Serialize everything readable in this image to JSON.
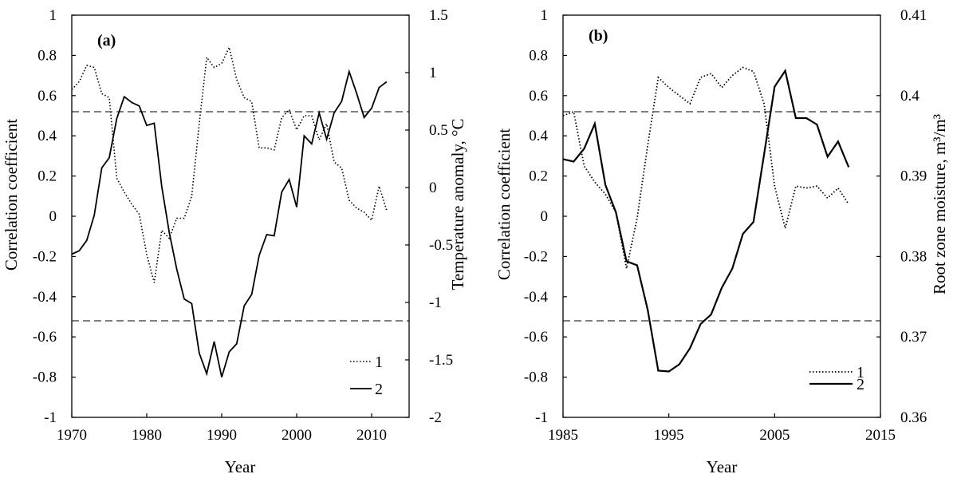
{
  "chart_data": [
    {
      "type": "line",
      "panel_label": "(a)",
      "xlabel": "Year",
      "ylabel_left": "Correlation coefficient",
      "ylabel_right": "Temperature anomaly, °C",
      "xlim": [
        1970,
        2015
      ],
      "ylim_left": [
        -1,
        1
      ],
      "ylim_right": [
        -2,
        1.5
      ],
      "x_ticks": [
        1970,
        1980,
        1990,
        2000,
        2010
      ],
      "y_ticks_left": [
        "1",
        "0.8",
        "0.6",
        "0.4",
        "0.2",
        "0",
        "-0.2",
        "-0.4",
        "-0.6",
        "-0.8",
        "-1"
      ],
      "y_ticks_right": [
        "1.5",
        "1",
        "0.5",
        "0",
        "-0.5",
        "-1",
        "-1.5",
        "-2"
      ],
      "thresholds": [
        0.52,
        -0.52
      ],
      "grid": false,
      "legend_position": "bottom-right",
      "series": [
        {
          "name": "1",
          "axis": "left",
          "style": "dotted",
          "x": [
            1970,
            1971,
            1972,
            1973,
            1974,
            1975,
            1976,
            1977,
            1978,
            1979,
            1980,
            1981,
            1982,
            1983,
            1984,
            1985,
            1986,
            1987,
            1988,
            1989,
            1990,
            1991,
            1992,
            1993,
            1994,
            1995,
            1996,
            1997,
            1998,
            1999,
            2000,
            2001,
            2002,
            2003,
            2004,
            2005,
            2006,
            2007,
            2008,
            2009,
            2010,
            2011,
            2012
          ],
          "y": [
            0.63,
            0.67,
            0.75,
            0.74,
            0.61,
            0.59,
            0.19,
            0.12,
            0.06,
            0.01,
            -0.19,
            -0.33,
            -0.07,
            -0.11,
            -0.01,
            -0.01,
            0.1,
            0.46,
            0.79,
            0.74,
            0.76,
            0.84,
            0.68,
            0.59,
            0.57,
            0.34,
            0.34,
            0.33,
            0.49,
            0.53,
            0.43,
            0.5,
            0.5,
            0.38,
            0.46,
            0.27,
            0.24,
            0.08,
            0.04,
            0.02,
            -0.02,
            0.15,
            0.03
          ]
        },
        {
          "name": "2",
          "axis": "right",
          "style": "solid",
          "x": [
            1970,
            1971,
            1972,
            1973,
            1974,
            1975,
            1976,
            1977,
            1978,
            1979,
            1980,
            1981,
            1982,
            1983,
            1984,
            1985,
            1986,
            1987,
            1988,
            1989,
            1990,
            1991,
            1992,
            1993,
            1994,
            1995,
            1996,
            1997,
            1998,
            1999,
            2000,
            2001,
            2002,
            2003,
            2004,
            2005,
            2006,
            2007,
            2008,
            2009,
            2010,
            2011,
            2012
          ],
          "y": [
            -0.58,
            -0.55,
            -0.46,
            -0.24,
            0.17,
            0.26,
            0.6,
            0.79,
            0.74,
            0.71,
            0.54,
            0.56,
            0.01,
            -0.39,
            -0.71,
            -0.97,
            -1.01,
            -1.44,
            -1.62,
            -1.34,
            -1.65,
            -1.43,
            -1.36,
            -1.03,
            -0.93,
            -0.59,
            -0.41,
            -0.42,
            -0.04,
            0.07,
            -0.17,
            0.45,
            0.38,
            0.65,
            0.42,
            0.65,
            0.75,
            1.01,
            0.82,
            0.61,
            0.69,
            0.87,
            0.92
          ]
        }
      ]
    },
    {
      "type": "line",
      "panel_label": "(b)",
      "xlabel": "Year",
      "ylabel_left": "Correlation coefficient",
      "ylabel_right": "Root zone moisture, m³/m³",
      "xlim": [
        1985,
        2015
      ],
      "ylim_left": [
        -1,
        1
      ],
      "ylim_right": [
        0.36,
        0.41
      ],
      "x_ticks": [
        1985,
        1995,
        2005,
        2015
      ],
      "y_ticks_left": [
        "1",
        "0.8",
        "0.6",
        "0.4",
        "0.2",
        "0",
        "-0.2",
        "-0.4",
        "-0.6",
        "-0.8",
        "-1"
      ],
      "y_ticks_right": [
        "0.41",
        "0.4",
        "0.39",
        "0.38",
        "0.37",
        "0.36"
      ],
      "thresholds": [
        0.52,
        -0.52
      ],
      "grid": false,
      "legend_position": "bottom-right",
      "series": [
        {
          "name": "1",
          "axis": "left",
          "style": "dotted",
          "x": [
            1985,
            1986,
            1987,
            1988,
            1989,
            1990,
            1991,
            1992,
            1993,
            1994,
            1995,
            1996,
            1997,
            1998,
            1999,
            2000,
            2001,
            2002,
            2003,
            2004,
            2005,
            2006,
            2007,
            2008,
            2009,
            2010,
            2011,
            2012
          ],
          "y": [
            0.5,
            0.52,
            0.25,
            0.17,
            0.11,
            0.02,
            -0.26,
            -0.01,
            0.35,
            0.69,
            0.64,
            0.6,
            0.56,
            0.69,
            0.71,
            0.64,
            0.7,
            0.74,
            0.72,
            0.56,
            0.15,
            -0.06,
            0.15,
            0.14,
            0.15,
            0.09,
            0.14,
            0.06
          ]
        },
        {
          "name": "2",
          "axis": "right",
          "style": "solid",
          "x": [
            1985,
            1986,
            1987,
            1988,
            1989,
            1990,
            1991,
            1992,
            1993,
            1994,
            1995,
            1996,
            1997,
            1998,
            1999,
            2000,
            2001,
            2002,
            2003,
            2004,
            2005,
            2006,
            2007,
            2008,
            2009,
            2010,
            2011,
            2012
          ],
          "y": [
            0.3921,
            0.3918,
            0.3934,
            0.3965,
            0.3889,
            0.3855,
            0.3794,
            0.3789,
            0.3734,
            0.3658,
            0.3657,
            0.3666,
            0.3686,
            0.3716,
            0.3728,
            0.3761,
            0.3785,
            0.3828,
            0.3843,
            0.3927,
            0.4011,
            0.4031,
            0.3972,
            0.3972,
            0.3964,
            0.3924,
            0.3943,
            0.3911
          ]
        }
      ]
    }
  ]
}
